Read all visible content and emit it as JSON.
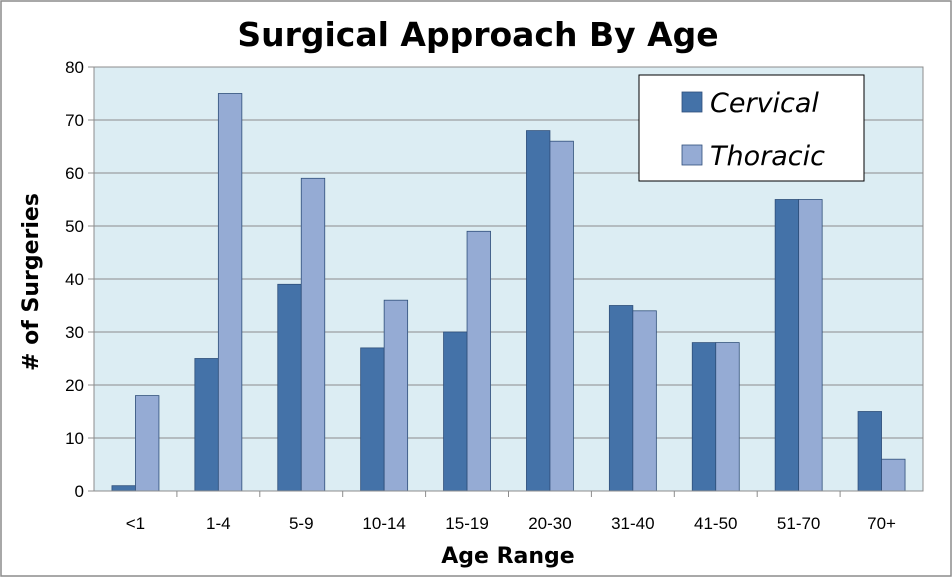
{
  "chart_data": {
    "type": "bar",
    "title": "Surgical Approach By Age",
    "xlabel": "Age Range",
    "ylabel": "# of Surgeries",
    "categories": [
      "<1",
      "1-4",
      "5-9",
      "10-14",
      "15-19",
      "20-30",
      "31-40",
      "41-50",
      "51-70",
      "70+"
    ],
    "series": [
      {
        "name": "Cervical",
        "color": "#4472a8",
        "values": [
          1,
          25,
          39,
          27,
          30,
          68,
          35,
          28,
          55,
          15
        ]
      },
      {
        "name": "Thoracic",
        "color": "#95abd4",
        "values": [
          18,
          75,
          59,
          36,
          49,
          66,
          34,
          28,
          55,
          6
        ]
      }
    ],
    "ylim": [
      0,
      80
    ],
    "yticks": [
      0,
      10,
      20,
      30,
      40,
      50,
      60,
      70,
      80
    ],
    "grid": true,
    "legend": "top-right",
    "plot_background": "#dcedf3"
  }
}
